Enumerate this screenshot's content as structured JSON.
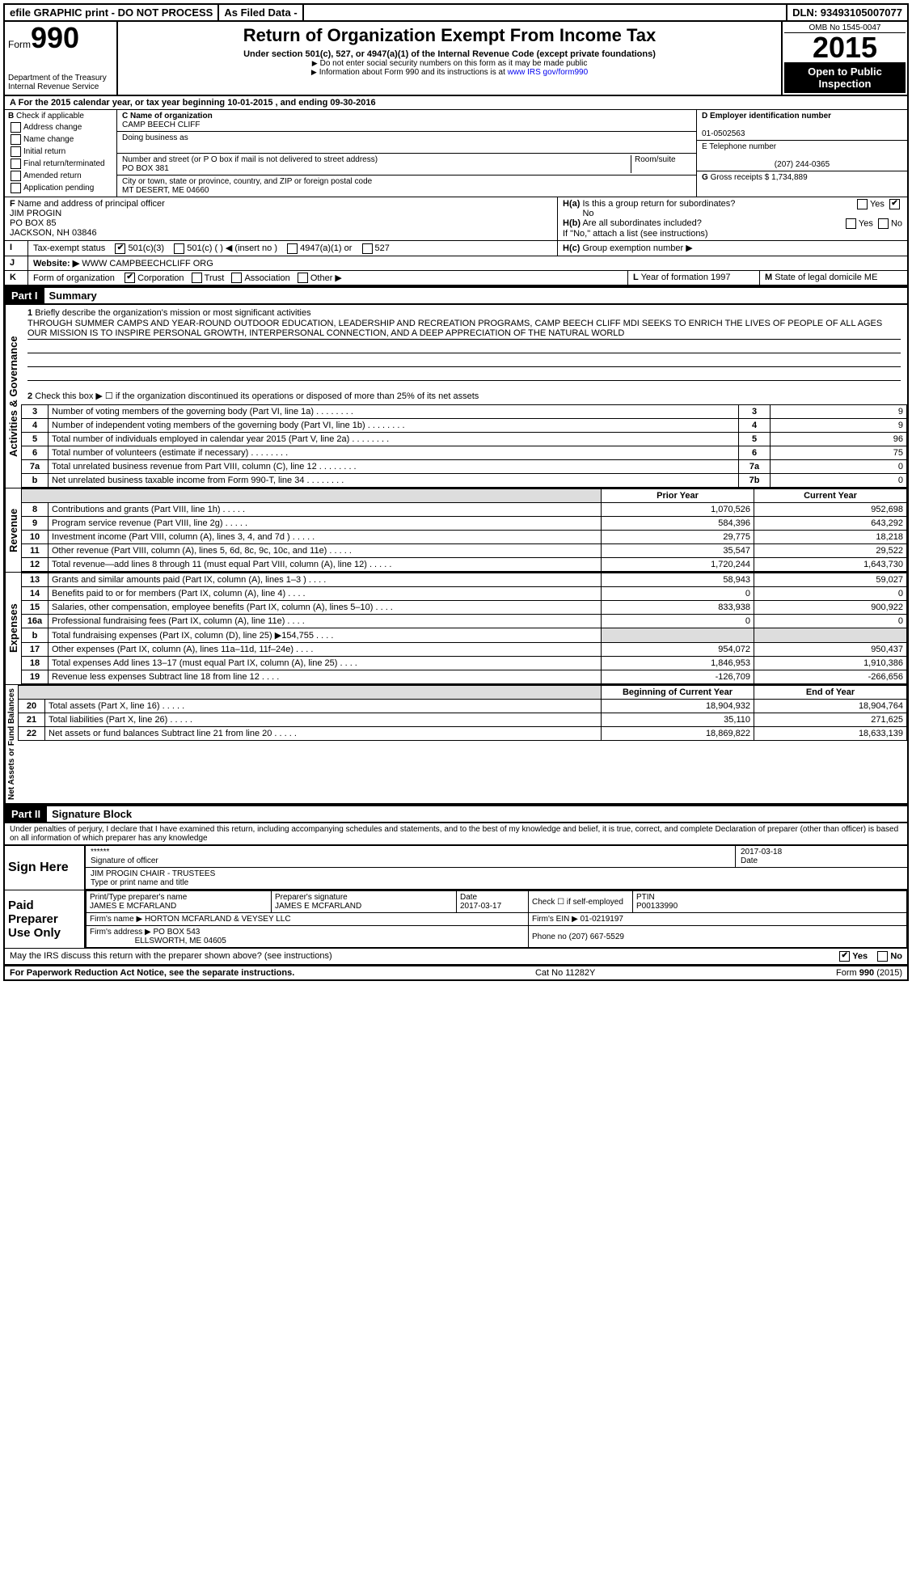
{
  "topbar": {
    "efile": "efile GRAPHIC print - DO NOT PROCESS",
    "asfiled": "As Filed Data -",
    "dln_label": "DLN:",
    "dln": "93493105007077"
  },
  "header": {
    "form_word": "Form",
    "form_no": "990",
    "dept1": "Department of the Treasury",
    "dept2": "Internal Revenue Service",
    "title": "Return of Organization Exempt From Income Tax",
    "subtitle": "Under section 501(c), 527, or 4947(a)(1) of the Internal Revenue Code (except private foundations)",
    "note1": "Do not enter social security numbers on this form as it may be made public",
    "note2": "Information about Form 990 and its instructions is at ",
    "note2_link": "www IRS gov/form990",
    "omb": "OMB No 1545-0047",
    "year": "2015",
    "open": "Open to Public Inspection"
  },
  "rowA": {
    "prefix": "A",
    "text": "For the 2015 calendar year, or tax year beginning 10-01-2015",
    "mid": ", and ending 09-30-2016"
  },
  "boxB": {
    "label": "B",
    "check": "Check if applicable",
    "opts": [
      "Address change",
      "Name change",
      "Initial return",
      "Final return/terminated",
      "Amended return",
      "Application pending"
    ]
  },
  "boxC": {
    "label_name": "C Name of organization",
    "name": "CAMP BEECH CLIFF",
    "dba_label": "Doing business as",
    "street_label": "Number and street (or P O box if mail is not delivered to street address)",
    "room_label": "Room/suite",
    "street": "PO BOX 381",
    "city_label": "City or town, state or province, country, and ZIP or foreign postal code",
    "city": "MT DESERT, ME  04660"
  },
  "boxD": {
    "label": "D Employer identification number",
    "value": "01-0502563"
  },
  "boxE": {
    "label": "E Telephone number",
    "value": "(207) 244-0365"
  },
  "boxG": {
    "label": "G",
    "text": "Gross receipts $",
    "value": "1,734,889"
  },
  "boxF": {
    "label": "F",
    "text": "Name and address of principal officer",
    "l1": "JIM PROGIN",
    "l2": "PO BOX 85",
    "l3": "JACKSON, NH  03846"
  },
  "boxH": {
    "a_label": "H(a)",
    "a_text": "Is this a group return for subordinates?",
    "a_value": "No",
    "b_label": "H(b)",
    "b_text": "Are all subordinates included?",
    "b_note": "If \"No,\" attach a list  (see instructions)",
    "c_label": "H(c)",
    "c_text": "Group exemption number ▶"
  },
  "rowI": {
    "label": "I",
    "text": "Tax-exempt status",
    "opts": [
      "501(c)(3)",
      "501(c) (   ) ◀ (insert no )",
      "4947(a)(1) or",
      "527"
    ]
  },
  "rowJ": {
    "label": "J",
    "text": "Website: ▶",
    "value": "WWW CAMPBEECHCLIFF ORG"
  },
  "rowK": {
    "label": "K",
    "text": "Form of organization",
    "opts": [
      "Corporation",
      "Trust",
      "Association",
      "Other ▶"
    ],
    "L_label": "L",
    "L_text": "Year of formation",
    "L_val": "1997",
    "M_label": "M",
    "M_text": "State of legal domicile",
    "M_val": "ME"
  },
  "partI": {
    "part": "Part I",
    "title": "Summary",
    "q1_label": "1",
    "q1_text": "Briefly describe the organization's mission or most significant activities",
    "mission": "THROUGH SUMMER CAMPS AND YEAR-ROUND OUTDOOR EDUCATION, LEADERSHIP AND RECREATION PROGRAMS, CAMP BEECH CLIFF MDI SEEKS TO ENRICH THE LIVES OF PEOPLE OF ALL AGES  OUR MISSION IS TO INSPIRE PERSONAL GROWTH, INTERPERSONAL CONNECTION, AND A DEEP APPRECIATION OF THE NATURAL WORLD",
    "q2_label": "2",
    "q2_text": "Check this box ▶ ☐ if the organization discontinued its operations or disposed of more than 25% of its net assets"
  },
  "gov_rows": [
    {
      "n": "3",
      "t": "Number of voting members of the governing body (Part VI, line 1a)",
      "box": "3",
      "v": "9"
    },
    {
      "n": "4",
      "t": "Number of independent voting members of the governing body (Part VI, line 1b)",
      "box": "4",
      "v": "9"
    },
    {
      "n": "5",
      "t": "Total number of individuals employed in calendar year 2015 (Part V, line 2a)",
      "box": "5",
      "v": "96"
    },
    {
      "n": "6",
      "t": "Total number of volunteers (estimate if necessary)",
      "box": "6",
      "v": "75"
    },
    {
      "n": "7a",
      "t": "Total unrelated business revenue from Part VIII, column (C), line 12",
      "box": "7a",
      "v": "0"
    },
    {
      "n": "b",
      "t": "Net unrelated business taxable income from Form 990-T, line 34",
      "box": "7b",
      "v": "0"
    }
  ],
  "col_headers": {
    "prior": "Prior Year",
    "current": "Current Year"
  },
  "revenue_rows": [
    {
      "n": "8",
      "t": "Contributions and grants (Part VIII, line 1h)",
      "p": "1,070,526",
      "c": "952,698"
    },
    {
      "n": "9",
      "t": "Program service revenue (Part VIII, line 2g)",
      "p": "584,396",
      "c": "643,292"
    },
    {
      "n": "10",
      "t": "Investment income (Part VIII, column (A), lines 3, 4, and 7d )",
      "p": "29,775",
      "c": "18,218"
    },
    {
      "n": "11",
      "t": "Other revenue (Part VIII, column (A), lines 5, 6d, 8c, 9c, 10c, and 11e)",
      "p": "35,547",
      "c": "29,522"
    },
    {
      "n": "12",
      "t": "Total revenue—add lines 8 through 11 (must equal Part VIII, column (A), line 12)",
      "p": "1,720,244",
      "c": "1,643,730"
    }
  ],
  "expense_rows": [
    {
      "n": "13",
      "t": "Grants and similar amounts paid (Part IX, column (A), lines 1–3 )",
      "p": "58,943",
      "c": "59,027"
    },
    {
      "n": "14",
      "t": "Benefits paid to or for members (Part IX, column (A), line 4)",
      "p": "0",
      "c": "0"
    },
    {
      "n": "15",
      "t": "Salaries, other compensation, employee benefits (Part IX, column (A), lines 5–10)",
      "p": "833,938",
      "c": "900,922"
    },
    {
      "n": "16a",
      "t": "Professional fundraising fees (Part IX, column (A), line 11e)",
      "p": "0",
      "c": "0"
    },
    {
      "n": "b",
      "t": "Total fundraising expenses (Part IX, column (D), line 25) ▶154,755",
      "p": "",
      "c": "",
      "shaded": true
    },
    {
      "n": "17",
      "t": "Other expenses (Part IX, column (A), lines 11a–11d, 11f–24e)",
      "p": "954,072",
      "c": "950,437"
    },
    {
      "n": "18",
      "t": "Total expenses  Add lines 13–17 (must equal Part IX, column (A), line 25)",
      "p": "1,846,953",
      "c": "1,910,386"
    },
    {
      "n": "19",
      "t": "Revenue less expenses  Subtract line 18 from line 12",
      "p": "-126,709",
      "c": "-266,656"
    }
  ],
  "net_headers": {
    "begin": "Beginning of Current Year",
    "end": "End of Year"
  },
  "net_rows": [
    {
      "n": "20",
      "t": "Total assets (Part X, line 16)",
      "p": "18,904,932",
      "c": "18,904,764"
    },
    {
      "n": "21",
      "t": "Total liabilities (Part X, line 26)",
      "p": "35,110",
      "c": "271,625"
    },
    {
      "n": "22",
      "t": "Net assets or fund balances  Subtract line 21 from line 20",
      "p": "18,869,822",
      "c": "18,633,139"
    }
  ],
  "partII": {
    "part": "Part II",
    "title": "Signature Block",
    "perjury": "Under penalties of perjury, I declare that I have examined this return, including accompanying schedules and statements, and to the best of my knowledge and belief, it is true, correct, and complete  Declaration of preparer (other than officer) is based on all information of which preparer has any knowledge"
  },
  "sign": {
    "label": "Sign Here",
    "sig_stars": "******",
    "sig_label": "Signature of officer",
    "date": "2017-03-18",
    "date_label": "Date",
    "name": "JIM PROGIN CHAIR - TRUSTEES",
    "name_label": "Type or print name and title"
  },
  "preparer": {
    "label": "Paid Preparer Use Only",
    "h_name": "Print/Type preparer's name",
    "name": "JAMES E MCFARLAND",
    "h_sig": "Preparer's signature",
    "sig": "JAMES E MCFARLAND",
    "h_date": "Date",
    "date": "2017-03-17",
    "h_check": "Check ☐ if self-employed",
    "h_ptin": "PTIN",
    "ptin": "P00133990",
    "firm_name_l": "Firm's name     ▶",
    "firm_name": "HORTON MCFARLAND & VEYSEY LLC",
    "firm_ein_l": "Firm's EIN ▶",
    "firm_ein": "01-0219197",
    "firm_addr_l": "Firm's address ▶",
    "firm_addr1": "PO BOX 543",
    "firm_addr2": "ELLSWORTH, ME  04605",
    "phone_l": "Phone no",
    "phone": "(207) 667-5529"
  },
  "discuss": {
    "text": "May the IRS discuss this return with the preparer shown above? (see instructions)",
    "yes": "Yes",
    "no": "No"
  },
  "footer": {
    "left": "For Paperwork Reduction Act Notice, see the separate instructions.",
    "mid": "Cat No 11282Y",
    "right": "Form 990 (2015)"
  },
  "labels": {
    "gov": "Activities & Governance",
    "rev": "Revenue",
    "exp": "Expenses",
    "net": "Net Assets or Fund Balances",
    "yes": "Yes",
    "no": "No"
  }
}
